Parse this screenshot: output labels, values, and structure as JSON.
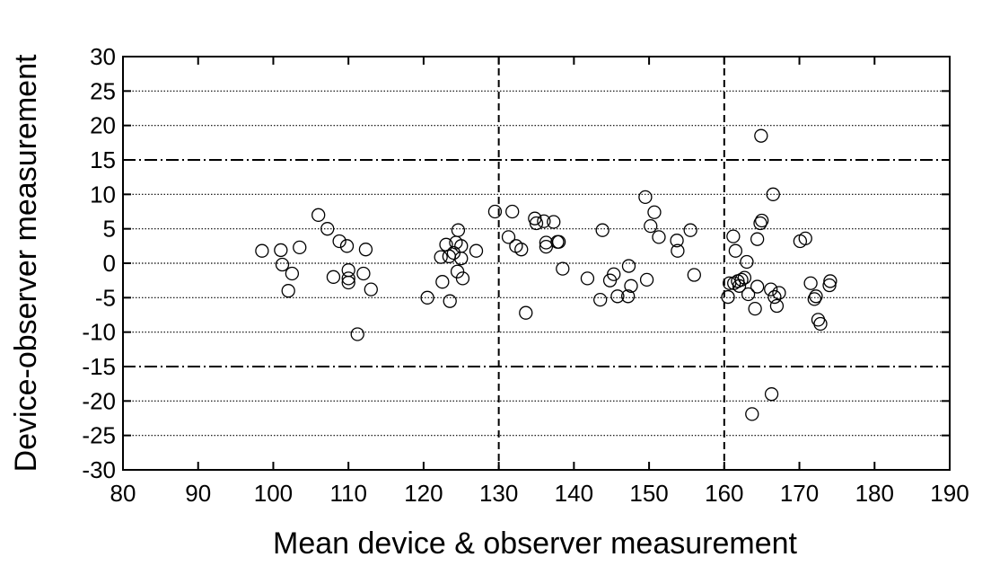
{
  "chart_data": {
    "type": "scatter",
    "title": "",
    "xlabel": "Mean device & observer measurement",
    "ylabel": "Device-observer measurement",
    "xlim": [
      80,
      190
    ],
    "ylim": [
      -30,
      30
    ],
    "xticks": [
      80,
      90,
      100,
      110,
      120,
      130,
      140,
      150,
      160,
      170,
      180,
      190
    ],
    "yticks": [
      30,
      25,
      20,
      15,
      10,
      5,
      0,
      -5,
      -10,
      -15,
      -20,
      -25,
      -30
    ],
    "grid": "horizontal dotted lines at every y tick",
    "reference_lines": {
      "horizontal_dashdot": [
        15,
        -15
      ],
      "vertical_dashed": [
        130,
        160
      ]
    },
    "marker": "open-circle",
    "points": [
      [
        98.5,
        1.8
      ],
      [
        101,
        1.9
      ],
      [
        101.2,
        -0.2
      ],
      [
        102,
        -4
      ],
      [
        102.5,
        -1.5
      ],
      [
        103.5,
        2.3
      ],
      [
        106,
        7
      ],
      [
        107.2,
        5
      ],
      [
        108,
        -2
      ],
      [
        108.8,
        3.2
      ],
      [
        109.8,
        2.5
      ],
      [
        110,
        -1
      ],
      [
        110,
        -2.2
      ],
      [
        110,
        -2.8
      ],
      [
        111.2,
        -10.3
      ],
      [
        112,
        -1.5
      ],
      [
        112.3,
        2
      ],
      [
        113,
        -3.8
      ],
      [
        120.5,
        -5
      ],
      [
        122.3,
        0.9
      ],
      [
        122.5,
        -2.7
      ],
      [
        123,
        2.7
      ],
      [
        123.4,
        1
      ],
      [
        123.5,
        -5.5
      ],
      [
        124,
        1.5
      ],
      [
        124.3,
        3
      ],
      [
        124.5,
        -1.2
      ],
      [
        124.6,
        4.8
      ],
      [
        125,
        2.5
      ],
      [
        125,
        0.7
      ],
      [
        125.2,
        -2.2
      ],
      [
        127,
        1.8
      ],
      [
        129.5,
        7.5
      ],
      [
        131.3,
        3.8
      ],
      [
        131.8,
        7.5
      ],
      [
        132.3,
        2.5
      ],
      [
        133,
        2
      ],
      [
        133.6,
        -7.2
      ],
      [
        134.8,
        6.5
      ],
      [
        135,
        5.8
      ],
      [
        136,
        6.1
      ],
      [
        136.3,
        3
      ],
      [
        136.3,
        2.4
      ],
      [
        137.3,
        6
      ],
      [
        137.8,
        3.1
      ],
      [
        138,
        3.1
      ],
      [
        138.5,
        -0.8
      ],
      [
        141.8,
        -2.2
      ],
      [
        143.5,
        -5.3
      ],
      [
        143.8,
        4.8
      ],
      [
        144.8,
        -2.5
      ],
      [
        145.3,
        -1.6
      ],
      [
        145.8,
        -4.8
      ],
      [
        147.2,
        -4.8
      ],
      [
        147.3,
        -0.4
      ],
      [
        147.6,
        -3.3
      ],
      [
        149.5,
        9.6
      ],
      [
        149.7,
        -2.4
      ],
      [
        150.2,
        5.4
      ],
      [
        150.7,
        7.4
      ],
      [
        151.3,
        3.8
      ],
      [
        153.7,
        3.3
      ],
      [
        153.8,
        1.8
      ],
      [
        155.5,
        4.8
      ],
      [
        156,
        -1.7
      ],
      [
        160.5,
        -4.9
      ],
      [
        160.7,
        -2.9
      ],
      [
        161.2,
        3.9
      ],
      [
        161.3,
        -2.9
      ],
      [
        161.5,
        1.8
      ],
      [
        161.8,
        -2.6
      ],
      [
        162,
        -3.3
      ],
      [
        162.3,
        -2.4
      ],
      [
        162.7,
        -2.1
      ],
      [
        163,
        0.2
      ],
      [
        163.2,
        -4.5
      ],
      [
        163.7,
        -21.9
      ],
      [
        164.1,
        -6.6
      ],
      [
        164.4,
        -3.4
      ],
      [
        164.4,
        3.5
      ],
      [
        164.8,
        5.8
      ],
      [
        164.9,
        18.5
      ],
      [
        165,
        6.2
      ],
      [
        166.2,
        -3.8
      ],
      [
        166.3,
        -19
      ],
      [
        166.5,
        10
      ],
      [
        166.7,
        -4.9
      ],
      [
        167,
        -6.2
      ],
      [
        167.3,
        -4.3
      ],
      [
        170.1,
        3.2
      ],
      [
        170.8,
        3.6
      ],
      [
        171.5,
        -2.9
      ],
      [
        172,
        -5.2
      ],
      [
        172.2,
        -4.8
      ],
      [
        172.5,
        -8.2
      ],
      [
        172.8,
        -8.8
      ],
      [
        174,
        -3.2
      ],
      [
        174.1,
        -2.6
      ]
    ]
  }
}
